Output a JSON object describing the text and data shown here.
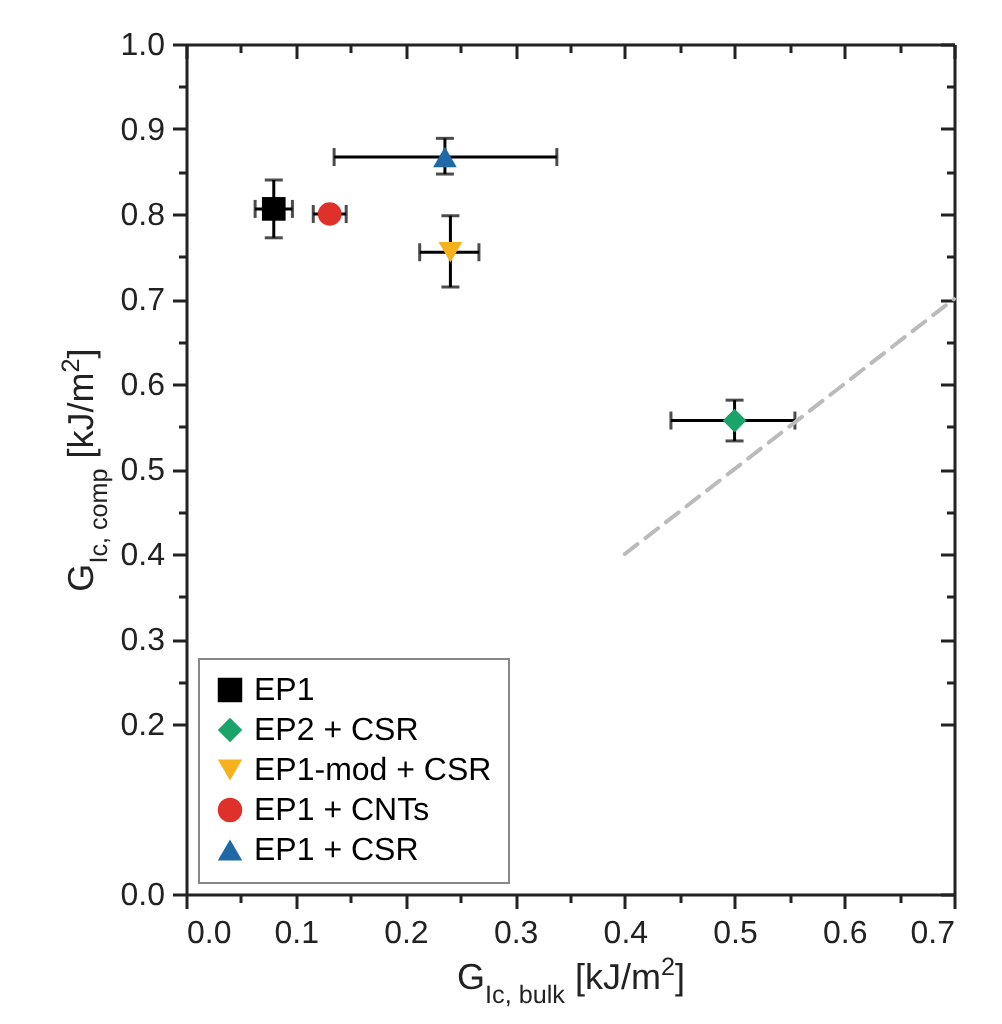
{
  "chart_data": {
    "type": "scatter",
    "xlabel": "G$_{Ic, bulk}$ [kJ/m$^{2}$]",
    "ylabel": "G$_{Ic, comp}$ [kJ/m$^{2}$]",
    "xlim": [
      0,
      0.7
    ],
    "xticks": [
      {
        "value": 0,
        "label": "0.0"
      },
      {
        "value": 0.05,
        "label": null
      },
      0.1,
      {
        "value": 0.15,
        "label": null
      },
      0.2,
      {
        "value": 0.25,
        "label": null
      },
      0.3,
      {
        "value": 0.35,
        "label": null
      },
      0.4,
      {
        "value": 0.45,
        "label": null
      },
      0.5,
      {
        "value": 0.55,
        "label": null
      },
      0.6,
      {
        "value": 0.65,
        "label": null
      },
      0.7
    ],
    "ylim": [
      0,
      1.0
    ],
    "yticks": [
      {
        "value": 0,
        "label": "0.0"
      },
      0.2,
      {
        "value": 0.25,
        "label": null
      },
      0.3,
      {
        "value": 0.35,
        "label": null
      },
      0.4,
      {
        "value": 0.45,
        "label": null
      },
      0.5,
      {
        "value": 0.55,
        "label": null
      },
      0.6,
      {
        "value": 0.65,
        "label": null
      },
      0.7,
      {
        "value": 0.75,
        "label": null
      },
      0.8,
      {
        "value": 0.85,
        "label": null
      },
      0.9,
      {
        "value": 0.95,
        "label": null
      },
      {
        "value": 1.0,
        "label": "1.0"
      }
    ],
    "legend": "bottom left",
    "series": [
      {
        "name": "EP1",
        "color": "#000000",
        "marker": "square",
        "x": [
          0.08
        ],
        "values": [
          0.806
        ],
        "errors": [
          [
            0.772,
            0.84
          ]
        ],
        "xerrors": [
          [
            0.063,
            0.097
          ]
        ]
      },
      {
        "name": "EP2 + CSR",
        "color": "#1aa46a",
        "marker": "diamond",
        "x": [
          0.5
        ],
        "values": [
          0.557
        ],
        "errors": [
          [
            0.533,
            0.581
          ]
        ],
        "xerrors": [
          [
            0.442,
            0.555
          ]
        ]
      },
      {
        "name": "EP1-mod + CSR",
        "color": "#f5b21c",
        "marker": "triangle-down",
        "x": [
          0.241
        ],
        "values": [
          0.755
        ],
        "errors": [
          [
            0.714,
            0.798
          ]
        ],
        "xerrors": [
          [
            0.213,
            0.267
          ]
        ]
      },
      {
        "name": "EP1 + CNTs",
        "color": "#e0302a",
        "marker": "circle",
        "x": [
          0.131
        ],
        "values": [
          0.8
        ],
        "xerrors": [
          [
            0.116,
            0.146
          ]
        ]
      },
      {
        "name": "EP1 + CSR",
        "color": "#1f6aa6",
        "marker": "triangle",
        "x": [
          0.236
        ],
        "values": [
          0.867
        ],
        "errors": [
          [
            0.847,
            0.889
          ]
        ],
        "xerrors": [
          [
            0.135,
            0.338
          ]
        ]
      },
      {
        "type": "line",
        "color": "#bbbbbb",
        "line_style": "dashed",
        "x": [
          0.4,
          0.7
        ],
        "values": [
          0.4,
          0.7
        ]
      }
    ]
  }
}
